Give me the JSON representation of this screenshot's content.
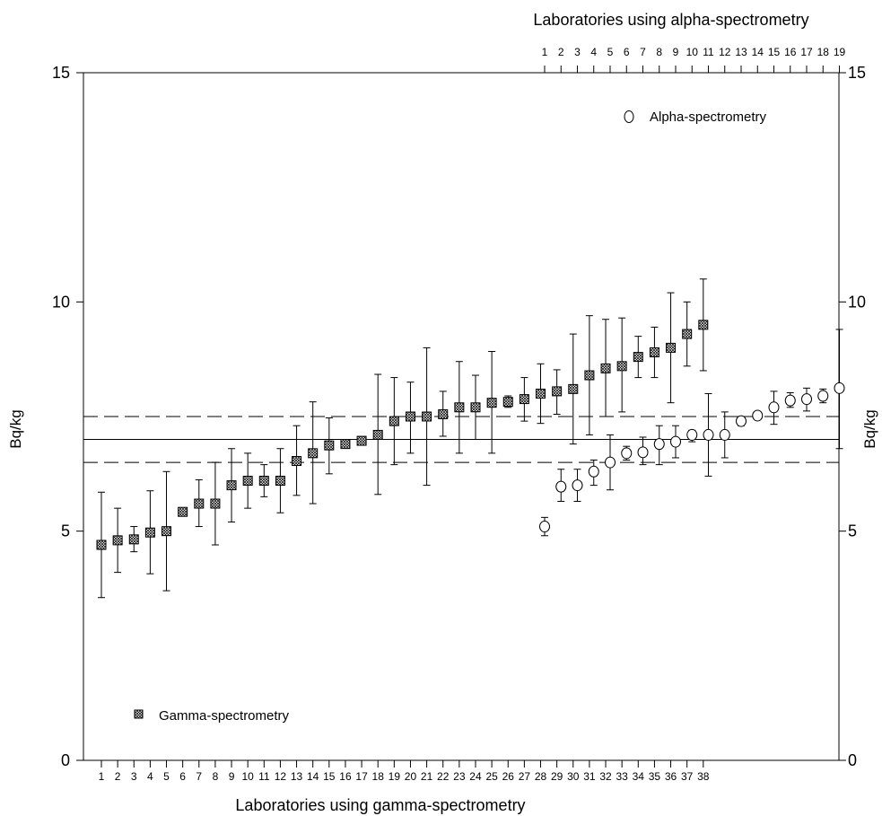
{
  "chart_data": {
    "type": "scatter",
    "title": "",
    "xlabel": "Laboratories using gamma-spectrometry",
    "x2label": "Laboratories using alpha-spectrometry",
    "ylabel": "Bq/kg",
    "y2label": "Bq/kg",
    "ylim": [
      0,
      15
    ],
    "yticks": [
      0,
      5,
      10,
      15
    ],
    "reference_lines": {
      "mean": 7.0,
      "lower": 6.5,
      "upper": 7.5
    },
    "legend": [
      {
        "name": "Gamma-spectrometry",
        "marker": "cross-hatched-square",
        "position": "bottom-left"
      },
      {
        "name": "Alpha-spectrometry",
        "marker": "open-circle",
        "position": "top-right"
      }
    ],
    "series": [
      {
        "name": "Gamma-spectrometry",
        "axis": "bottom",
        "x": [
          1,
          2,
          3,
          4,
          5,
          6,
          7,
          8,
          9,
          10,
          11,
          12,
          13,
          14,
          15,
          16,
          17,
          18,
          19,
          20,
          21,
          22,
          23,
          24,
          25,
          26,
          27,
          28,
          29,
          30,
          31,
          32,
          33,
          34,
          35,
          36,
          37,
          38
        ],
        "y": [
          4.7,
          4.8,
          4.82,
          4.97,
          5.0,
          5.42,
          5.6,
          5.6,
          6.0,
          6.1,
          6.1,
          6.1,
          6.53,
          6.7,
          6.87,
          6.9,
          6.97,
          7.1,
          7.4,
          7.5,
          7.5,
          7.55,
          7.7,
          7.7,
          7.8,
          7.82,
          7.88,
          8.0,
          8.05,
          8.1,
          8.4,
          8.55,
          8.6,
          8.8,
          8.9,
          9.0,
          9.3,
          9.5
        ],
        "err_low": [
          3.55,
          4.1,
          4.55,
          4.07,
          3.7,
          5.35,
          5.1,
          4.7,
          5.2,
          5.5,
          5.75,
          5.4,
          5.78,
          5.6,
          6.25,
          6.85,
          6.93,
          5.8,
          6.45,
          6.7,
          6.0,
          7.07,
          6.7,
          7.0,
          6.7,
          7.7,
          7.4,
          7.35,
          7.55,
          6.9,
          7.1,
          7.5,
          7.6,
          8.35,
          8.35,
          7.8,
          8.6,
          8.5
        ],
        "err_high": [
          5.85,
          5.5,
          5.1,
          5.88,
          6.3,
          5.5,
          6.12,
          6.5,
          6.8,
          6.7,
          6.45,
          6.8,
          7.3,
          7.82,
          7.47,
          6.95,
          7.0,
          8.42,
          8.35,
          8.25,
          9.0,
          8.05,
          8.7,
          8.4,
          8.92,
          7.95,
          8.35,
          8.65,
          8.52,
          9.3,
          9.7,
          9.62,
          9.65,
          9.25,
          9.45,
          10.2,
          10.0,
          10.5
        ]
      },
      {
        "name": "Alpha-spectrometry",
        "axis": "top",
        "x": [
          1,
          2,
          3,
          4,
          5,
          6,
          7,
          8,
          9,
          10,
          11,
          12,
          13,
          14,
          15,
          16,
          17,
          18,
          19
        ],
        "y": [
          5.1,
          5.97,
          6.0,
          6.3,
          6.5,
          6.7,
          6.72,
          6.9,
          6.95,
          7.1,
          7.1,
          7.1,
          7.4,
          7.52,
          7.7,
          7.85,
          7.88,
          7.95,
          8.12
        ],
        "err_low": [
          4.9,
          5.65,
          5.65,
          6.0,
          5.9,
          6.55,
          6.45,
          6.45,
          6.6,
          6.95,
          6.2,
          6.6,
          7.3,
          7.45,
          7.33,
          7.7,
          7.62,
          7.8,
          6.8
        ],
        "err_high": [
          5.3,
          6.35,
          6.35,
          6.55,
          7.1,
          6.85,
          7.05,
          7.3,
          7.3,
          7.2,
          8.0,
          7.6,
          7.5,
          7.58,
          8.05,
          8.02,
          8.12,
          8.1,
          9.4
        ]
      }
    ]
  }
}
